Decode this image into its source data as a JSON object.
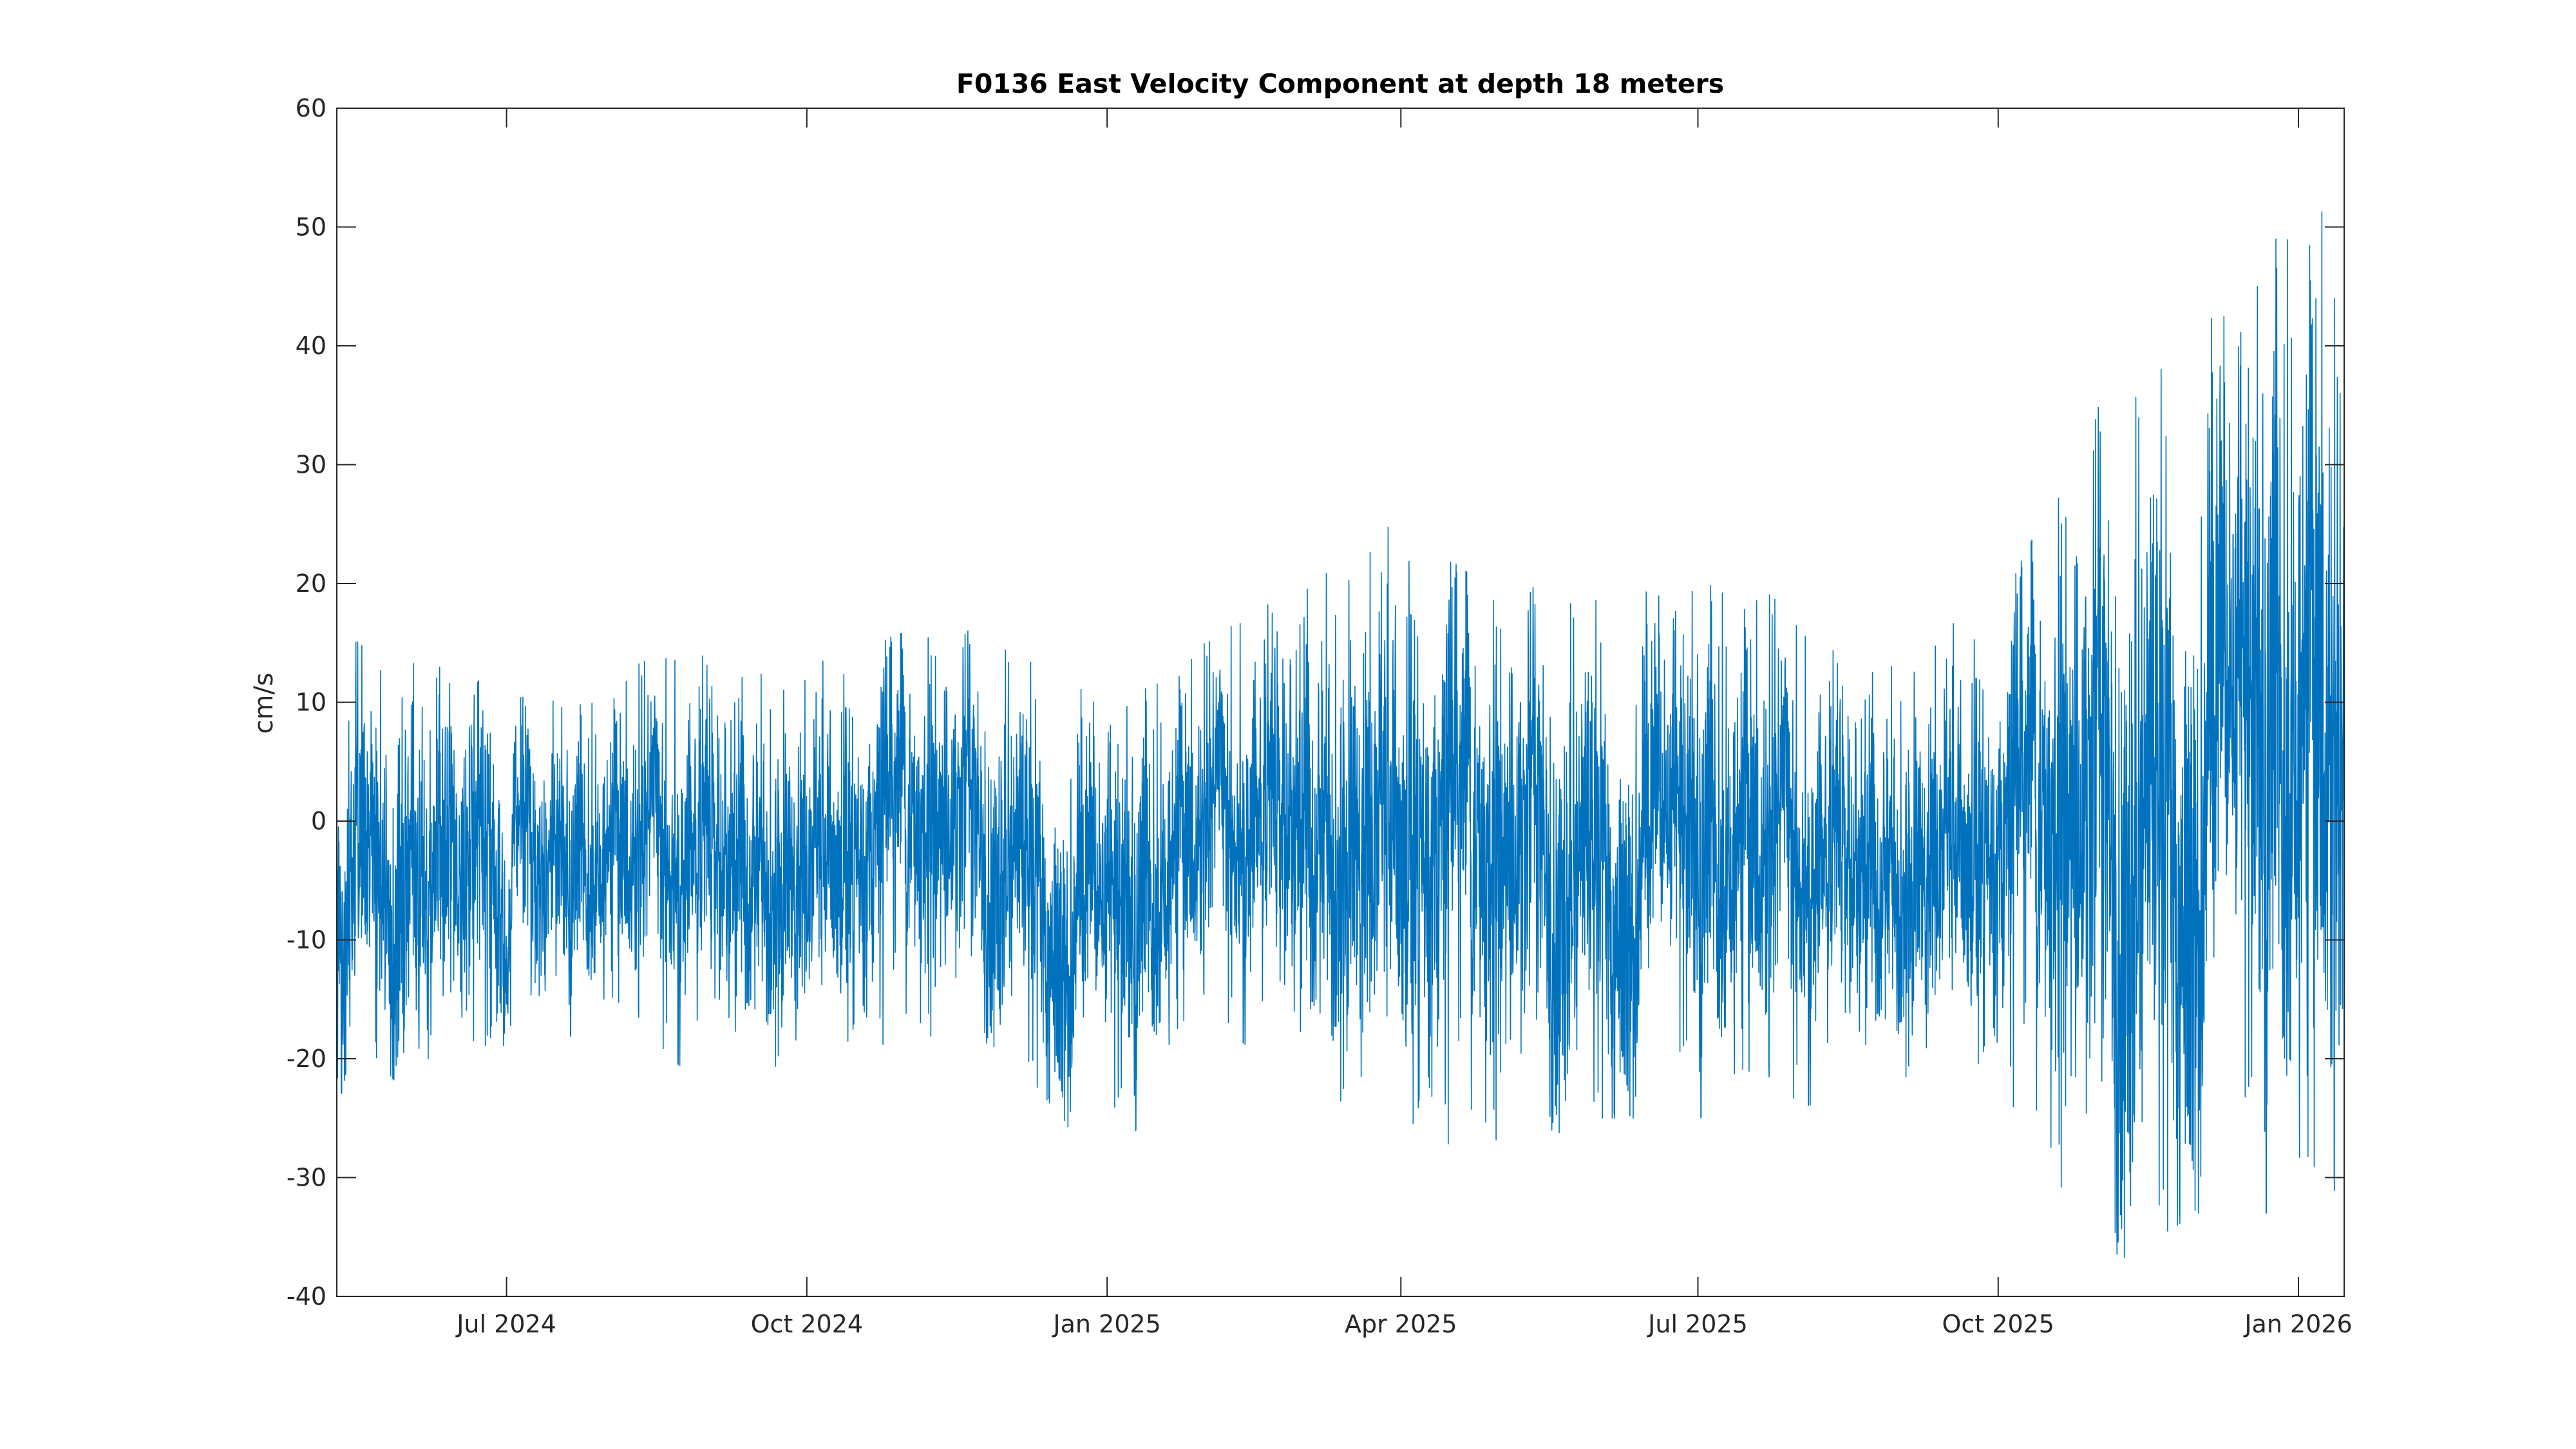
{
  "chart_data": {
    "type": "line",
    "title": "F0136 East Velocity Component at depth 18 meters",
    "xlabel": "",
    "ylabel": "cm/s",
    "x_start": "2024-05-10",
    "x_end": "2026-01-15",
    "xlim": [
      "2024-05-10",
      "2026-01-15"
    ],
    "ylim": [
      -40,
      60
    ],
    "x_ticks": [
      {
        "date": "2024-07-01",
        "label": "Jul 2024"
      },
      {
        "date": "2024-10-01",
        "label": "Oct 2024"
      },
      {
        "date": "2025-01-01",
        "label": "Jan 2025"
      },
      {
        "date": "2025-04-01",
        "label": "Apr 2025"
      },
      {
        "date": "2025-07-01",
        "label": "Jul 2025"
      },
      {
        "date": "2025-10-01",
        "label": "Oct 2025"
      },
      {
        "date": "2026-01-01",
        "label": "Jan 2026"
      }
    ],
    "y_ticks": [
      {
        "value": 60,
        "label": "60"
      },
      {
        "value": 50,
        "label": "50"
      },
      {
        "value": 40,
        "label": "40"
      },
      {
        "value": 30,
        "label": "30"
      },
      {
        "value": 20,
        "label": "20"
      },
      {
        "value": 10,
        "label": "10"
      },
      {
        "value": 0,
        "label": "0"
      },
      {
        "value": -10,
        "label": "-10"
      },
      {
        "value": -20,
        "label": "-20"
      },
      {
        "value": -30,
        "label": "-30"
      },
      {
        "value": -40,
        "label": "-40"
      }
    ],
    "grid": false,
    "series": [
      {
        "color": "#0072BD",
        "samples_per_day": 12,
        "envelope_note": "dense oscillation; approx values from image",
        "envelope": [
          {
            "date": "2024-05-10",
            "min": -30,
            "max": 12
          },
          {
            "date": "2024-05-20",
            "min": -20,
            "max": 19
          },
          {
            "date": "2024-06-10",
            "min": -25,
            "max": 13
          },
          {
            "date": "2024-07-01",
            "min": -20,
            "max": 11
          },
          {
            "date": "2024-08-01",
            "min": -17,
            "max": 12
          },
          {
            "date": "2024-09-01",
            "min": -22,
            "max": 16
          },
          {
            "date": "2024-10-01",
            "min": -22,
            "max": 13
          },
          {
            "date": "2024-11-01",
            "min": -19,
            "max": 16
          },
          {
            "date": "2024-12-01",
            "min": -19,
            "max": 16
          },
          {
            "date": "2025-01-01",
            "min": -30,
            "max": 13
          },
          {
            "date": "2025-02-01",
            "min": -16,
            "max": 15
          },
          {
            "date": "2025-03-01",
            "min": -23,
            "max": 23
          },
          {
            "date": "2025-04-01",
            "min": -29,
            "max": 25
          },
          {
            "date": "2025-05-01",
            "min": -28,
            "max": 19
          },
          {
            "date": "2025-06-01",
            "min": -25,
            "max": 21
          },
          {
            "date": "2025-07-01",
            "min": -25,
            "max": 24
          },
          {
            "date": "2025-08-01",
            "min": -24,
            "max": 17
          },
          {
            "date": "2025-09-01",
            "min": -23,
            "max": 15
          },
          {
            "date": "2025-10-01",
            "min": -23,
            "max": 18
          },
          {
            "date": "2025-11-01",
            "min": -38,
            "max": 35
          },
          {
            "date": "2025-12-01",
            "min": -33,
            "max": 46
          },
          {
            "date": "2025-12-25",
            "min": -33,
            "max": 55
          },
          {
            "date": "2026-01-10",
            "min": -37,
            "max": 54
          },
          {
            "date": "2026-01-15",
            "min": -35,
            "max": 30
          }
        ]
      }
    ]
  }
}
